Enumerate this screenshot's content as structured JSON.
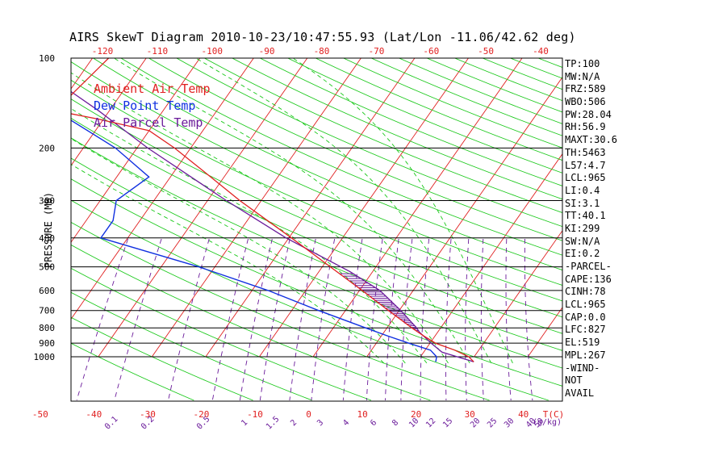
{
  "title": "AIRS SkewT Diagram 2010-10-23/10:47:55.93 (Lat/Lon -11.06/42.62 deg)",
  "y_axis_title": "PRESSURE (MB)",
  "legend": [
    {
      "label": "Ambient Air Temp",
      "color": "#e02020"
    },
    {
      "label": "Dew Point Temp",
      "color": "#1030e0"
    },
    {
      "label": "Air Parcel Temp",
      "color": "#6a1a9a"
    }
  ],
  "colors": {
    "temperature": "#e02020",
    "dewpoint": "#1030e0",
    "parcel": "#6a1a9a",
    "isotherm": "#e02020",
    "dry_adiabat": "#18c818",
    "moist_adiabat": "#18c818",
    "mixing_ratio": "#6a1a9a",
    "frame": "#000000",
    "top_axis": "#e02020",
    "bottom_axis": "#e02020",
    "mixing_ratio_labels": "#6a1a9a"
  },
  "indices": [
    "TP:100",
    "MW:N/A",
    "FRZ:589",
    "WBO:506",
    "PW:28.04",
    "RH:56.9",
    "MAXT:30.6",
    "TH:5463",
    "L57:4.7",
    "LCL:965",
    "LI:0.4",
    "SI:3.1",
    "TT:40.1",
    "KI:299",
    "SW:N/A",
    "EI:0.2",
    "-PARCEL-",
    "CAPE:136",
    "CINH:78",
    "LCL:965",
    "CAP:0.0",
    "LFC:827",
    "EL:519",
    "MPL:267",
    "-WIND-",
    "NOT",
    "AVAIL"
  ],
  "chart_data": {
    "type": "line",
    "title": "AIRS SkewT Diagram 2010-10-23/10:47:55.93 (Lat/Lon -11.06/42.62 deg)",
    "ylabel": "PRESSURE (MB)",
    "xlabel": "T(C)",
    "y_scale": "log",
    "y_reversed": true,
    "ylim": [
      1050,
      100
    ],
    "pressure_ticks": [
      100,
      200,
      300,
      400,
      500,
      600,
      700,
      800,
      900,
      1000
    ],
    "bottom_temp_ticks": [
      -50,
      -40,
      -30,
      -20,
      -10,
      0,
      10,
      20,
      30,
      40
    ],
    "top_temp_ticks": [
      -120,
      -110,
      -100,
      -90,
      -80,
      -70,
      -60,
      -50,
      -40
    ],
    "mixing_ratio_labels": [
      "0.1",
      "0.2",
      "0.5",
      "1",
      "1.5",
      "2",
      "3",
      "4",
      "6",
      "8",
      "10",
      "12",
      "15",
      "20",
      "25",
      "30",
      "40",
      "50"
    ],
    "mixing_ratio_unit": "(g/kg)",
    "grid": true,
    "legend_position": "top-left",
    "series": [
      {
        "name": "Ambient Air Temp",
        "points": [
          [
            1040,
            30.6
          ],
          [
            1000,
            29.0
          ],
          [
            950,
            25.5
          ],
          [
            900,
            21.0
          ],
          [
            850,
            17.8
          ],
          [
            800,
            14.6
          ],
          [
            700,
            8.0
          ],
          [
            600,
            0.5
          ],
          [
            500,
            -8.5
          ],
          [
            400,
            -19.5
          ],
          [
            300,
            -34.0
          ],
          [
            250,
            -42.5
          ],
          [
            200,
            -53.0
          ],
          [
            175,
            -60.0
          ],
          [
            160,
            -71.0
          ],
          [
            150,
            -80.0
          ],
          [
            130,
            -79.0
          ],
          [
            100,
            -77.0
          ]
        ]
      },
      {
        "name": "Dew Point Temp",
        "points": [
          [
            1040,
            23.5
          ],
          [
            1000,
            23.0
          ],
          [
            950,
            21.0
          ],
          [
            900,
            16.0
          ],
          [
            850,
            11.0
          ],
          [
            800,
            6.0
          ],
          [
            700,
            -5.0
          ],
          [
            600,
            -17.0
          ],
          [
            500,
            -33.0
          ],
          [
            400,
            -55.0
          ],
          [
            350,
            -55.0
          ],
          [
            300,
            -57.0
          ],
          [
            250,
            -54.0
          ],
          [
            200,
            -64.0
          ],
          [
            150,
            -80.0
          ],
          [
            130,
            -86.0
          ],
          [
            100,
            -94.0
          ]
        ]
      },
      {
        "name": "Air Parcel Temp",
        "points": [
          [
            1040,
            30.6
          ],
          [
            965,
            23.4
          ],
          [
            900,
            20.2
          ],
          [
            827,
            16.6
          ],
          [
            800,
            15.5
          ],
          [
            700,
            10.3
          ],
          [
            600,
            3.8
          ],
          [
            519,
            -4.2
          ],
          [
            400,
            -20.5
          ],
          [
            300,
            -36.5
          ],
          [
            200,
            -58.0
          ],
          [
            150,
            -72.0
          ],
          [
            100,
            -93.0
          ]
        ]
      }
    ]
  }
}
